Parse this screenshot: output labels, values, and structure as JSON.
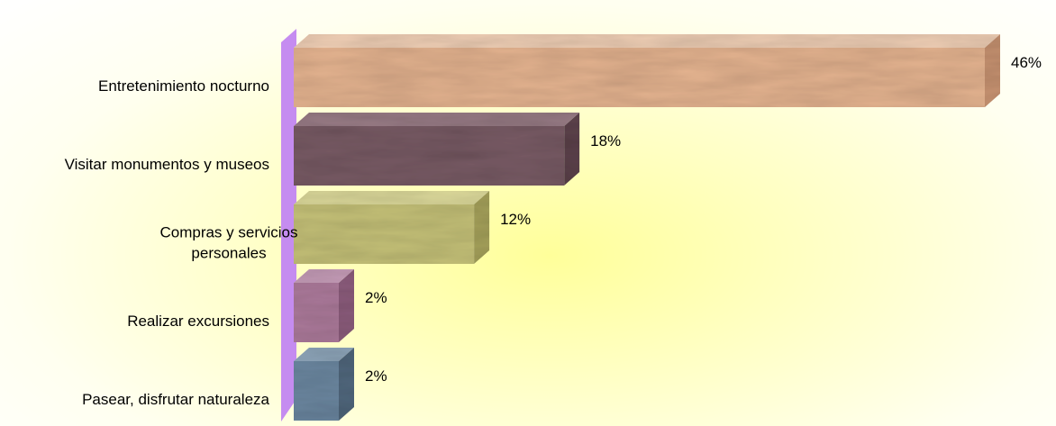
{
  "chart_data": {
    "type": "bar",
    "orientation": "horizontal",
    "categories": [
      [
        "Entretenimiento nocturno"
      ],
      [
        "Visitar monumentos y museos"
      ],
      [
        "Compras y servicios",
        "personales"
      ],
      [
        "Realizar excursiones"
      ],
      [
        "Pasear, disfrutar naturaleza"
      ]
    ],
    "values": [
      46,
      18,
      12,
      2,
      2
    ],
    "value_labels": [
      "46%",
      "18%",
      "12%",
      "2%",
      "2%"
    ],
    "colors": [
      {
        "front": "#e8b692",
        "top": "#f3d2b8",
        "side": "#c99472"
      },
      {
        "front": "#7a5c66",
        "top": "#9a7d87",
        "side": "#5e434c"
      },
      {
        "front": "#c8c47a",
        "top": "#dedb9c",
        "side": "#a8a45c"
      },
      {
        "front": "#b07d9e",
        "top": "#caa0bc",
        "side": "#8e5e7e"
      },
      {
        "front": "#6e8aa4",
        "top": "#93abc0",
        "side": "#52697f"
      }
    ],
    "wall_color": "#c58cf0",
    "xlim": [
      0,
      46
    ],
    "title": "",
    "xlabel": "",
    "ylabel": "",
    "grid": false,
    "legend": "none"
  }
}
